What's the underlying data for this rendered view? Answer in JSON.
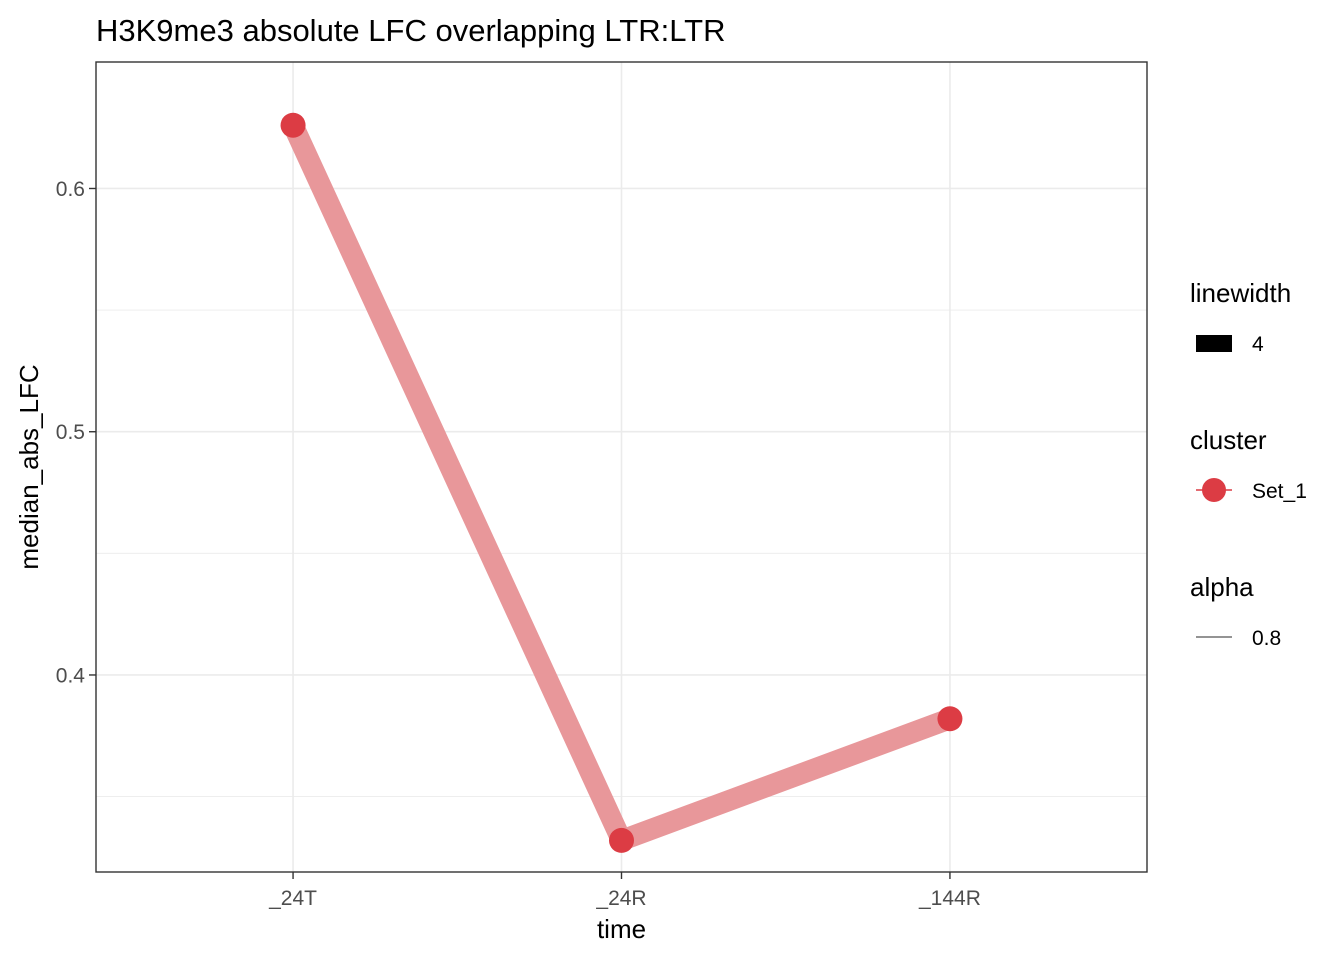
{
  "chart_data": {
    "type": "line",
    "title": "H3K9me3 absolute LFC overlapping LTR:LTR",
    "xlabel": "time",
    "ylabel": "median_abs_LFC",
    "categories": [
      "_24T",
      "_24R",
      "_144R"
    ],
    "series": [
      {
        "name": "Set_1",
        "values": [
          0.626,
          0.332,
          0.382
        ]
      }
    ],
    "ylim": [
      0.319,
      0.652
    ],
    "yticks": [
      0.4,
      0.5,
      0.6
    ],
    "ytick_labels": [
      "0.4",
      "0.5",
      "0.6"
    ],
    "y_minor_gridlines": [
      0.35,
      0.45,
      0.55
    ],
    "grid": true,
    "legend_position": "right",
    "legends": [
      {
        "title": "linewidth",
        "key": "rect",
        "label": "4"
      },
      {
        "title": "cluster",
        "key": "point-line",
        "label": "Set_1"
      },
      {
        "title": "alpha",
        "key": "thin-line",
        "label": "0.8"
      }
    ],
    "colors": {
      "point": "#dc3c44",
      "line": "#e8979a",
      "grid": "#ebebeb",
      "panel_border": "#333333",
      "legend_rect": "#000000",
      "legend_thin_line": "#555555"
    }
  }
}
